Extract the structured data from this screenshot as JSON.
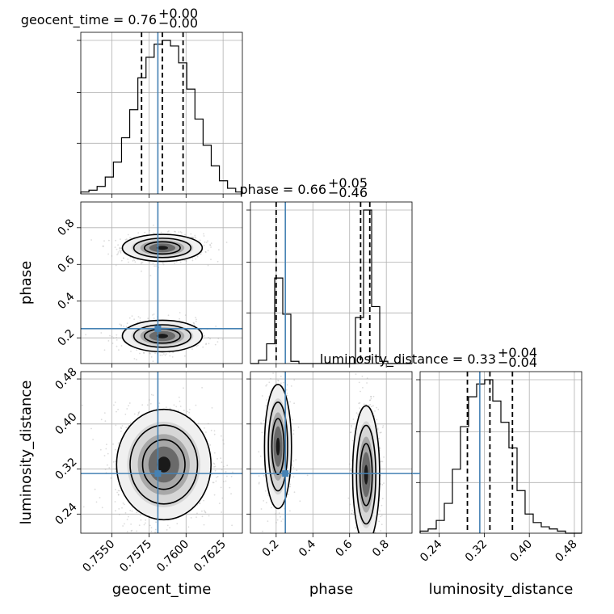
{
  "chart_data": {
    "type": "corner",
    "parameters": [
      "geocent_time",
      "phase",
      "luminosity_distance"
    ],
    "truths": {
      "geocent_time": 0.7581,
      "phase": 0.25,
      "luminosity_distance": 0.312
    },
    "titles": [
      {
        "param": "geocent_time",
        "text": "geocent_time = 0.76",
        "plus": "+0.00",
        "minus": "−0.00"
      },
      {
        "param": "phase",
        "text": "phase = 0.66",
        "plus": "+0.05",
        "minus": "−0.46"
      },
      {
        "param": "luminosity_distance",
        "text": "luminosity_distance = 0.33",
        "plus": "+0.04",
        "minus": "−0.04"
      }
    ],
    "axes": {
      "geocent_time": {
        "range": [
          0.7529,
          0.7638
        ],
        "ticks": [
          "0.7550",
          "0.7575",
          "0.7600",
          "0.7625"
        ],
        "tick_values": [
          0.755,
          0.7575,
          0.76,
          0.7625
        ]
      },
      "phase": {
        "range": [
          0.06,
          0.94
        ],
        "ticks": [
          "0.2",
          "0.4",
          "0.6",
          "0.8"
        ],
        "tick_values": [
          0.2,
          0.4,
          0.6,
          0.8
        ]
      },
      "luminosity_distance": {
        "range": [
          0.206,
          0.493
        ],
        "ticks": [
          "0.24",
          "0.32",
          "0.40",
          "0.48"
        ],
        "tick_values": [
          0.24,
          0.32,
          0.4,
          0.48
        ]
      }
    },
    "marginals": {
      "geocent_time": {
        "bin_edges": [
          0.7529,
          0.75345,
          0.754,
          0.75455,
          0.7551,
          0.75565,
          0.7562,
          0.75675,
          0.7573,
          0.75785,
          0.7584,
          0.75895,
          0.7595,
          0.76005,
          0.7606,
          0.76115,
          0.7617,
          0.76225,
          0.7628,
          0.76335,
          0.7638
        ],
        "counts": [
          1,
          2,
          4,
          9,
          17,
          30,
          45,
          62,
          73,
          80,
          82,
          79,
          70,
          56,
          40,
          26,
          15,
          7,
          3,
          1
        ],
        "quantiles": [
          0.757,
          0.7584,
          0.7598
        ]
      },
      "phase": {
        "bin_edges": [
          0.06,
          0.104,
          0.148,
          0.192,
          0.236,
          0.28,
          0.324,
          0.368,
          0.412,
          0.456,
          0.5,
          0.544,
          0.588,
          0.632,
          0.676,
          0.72,
          0.764,
          0.808,
          0.852,
          0.896,
          0.94
        ],
        "counts": [
          0,
          3,
          18,
          78,
          45,
          2,
          0,
          0,
          0,
          0,
          0,
          0,
          0,
          42,
          140,
          52,
          2,
          0,
          0,
          0
        ],
        "quantiles": [
          0.2,
          0.66,
          0.71
        ]
      },
      "luminosity_distance": {
        "bin_edges": [
          0.206,
          0.2203,
          0.2347,
          0.249,
          0.2634,
          0.2777,
          0.2921,
          0.3064,
          0.3208,
          0.3351,
          0.3495,
          0.3638,
          0.3782,
          0.3925,
          0.4069,
          0.4212,
          0.4356,
          0.4499,
          0.4643,
          0.4786,
          0.493
        ],
        "counts": [
          1,
          2,
          6,
          14,
          30,
          50,
          64,
          70,
          72,
          62,
          52,
          40,
          20,
          9,
          5,
          3,
          2,
          1,
          0,
          0
        ],
        "quantiles": [
          0.29,
          0.33,
          0.37
        ]
      }
    },
    "pairs": [
      {
        "x": "geocent_time",
        "y": "phase",
        "modes": [
          {
            "cx": 0.7584,
            "cy": 0.69,
            "sx": 0.0011,
            "sy": 0.03,
            "weight": 0.6
          },
          {
            "cx": 0.7584,
            "cy": 0.21,
            "sx": 0.0011,
            "sy": 0.035,
            "weight": 0.4
          }
        ]
      },
      {
        "x": "geocent_time",
        "y": "luminosity_distance",
        "modes": [
          {
            "cx": 0.7585,
            "cy": 0.328,
            "sx": 0.0013,
            "sy": 0.04,
            "weight": 1.0
          }
        ]
      },
      {
        "x": "phase",
        "y": "luminosity_distance",
        "modes": [
          {
            "cx": 0.21,
            "cy": 0.36,
            "sx": 0.03,
            "sy": 0.045,
            "weight": 0.4
          },
          {
            "cx": 0.69,
            "cy": 0.31,
            "sx": 0.03,
            "sy": 0.05,
            "weight": 0.6
          }
        ]
      }
    ],
    "colors": {
      "truth": "#4682b4",
      "hist": "#000000",
      "points": "#9a9a9a"
    }
  }
}
